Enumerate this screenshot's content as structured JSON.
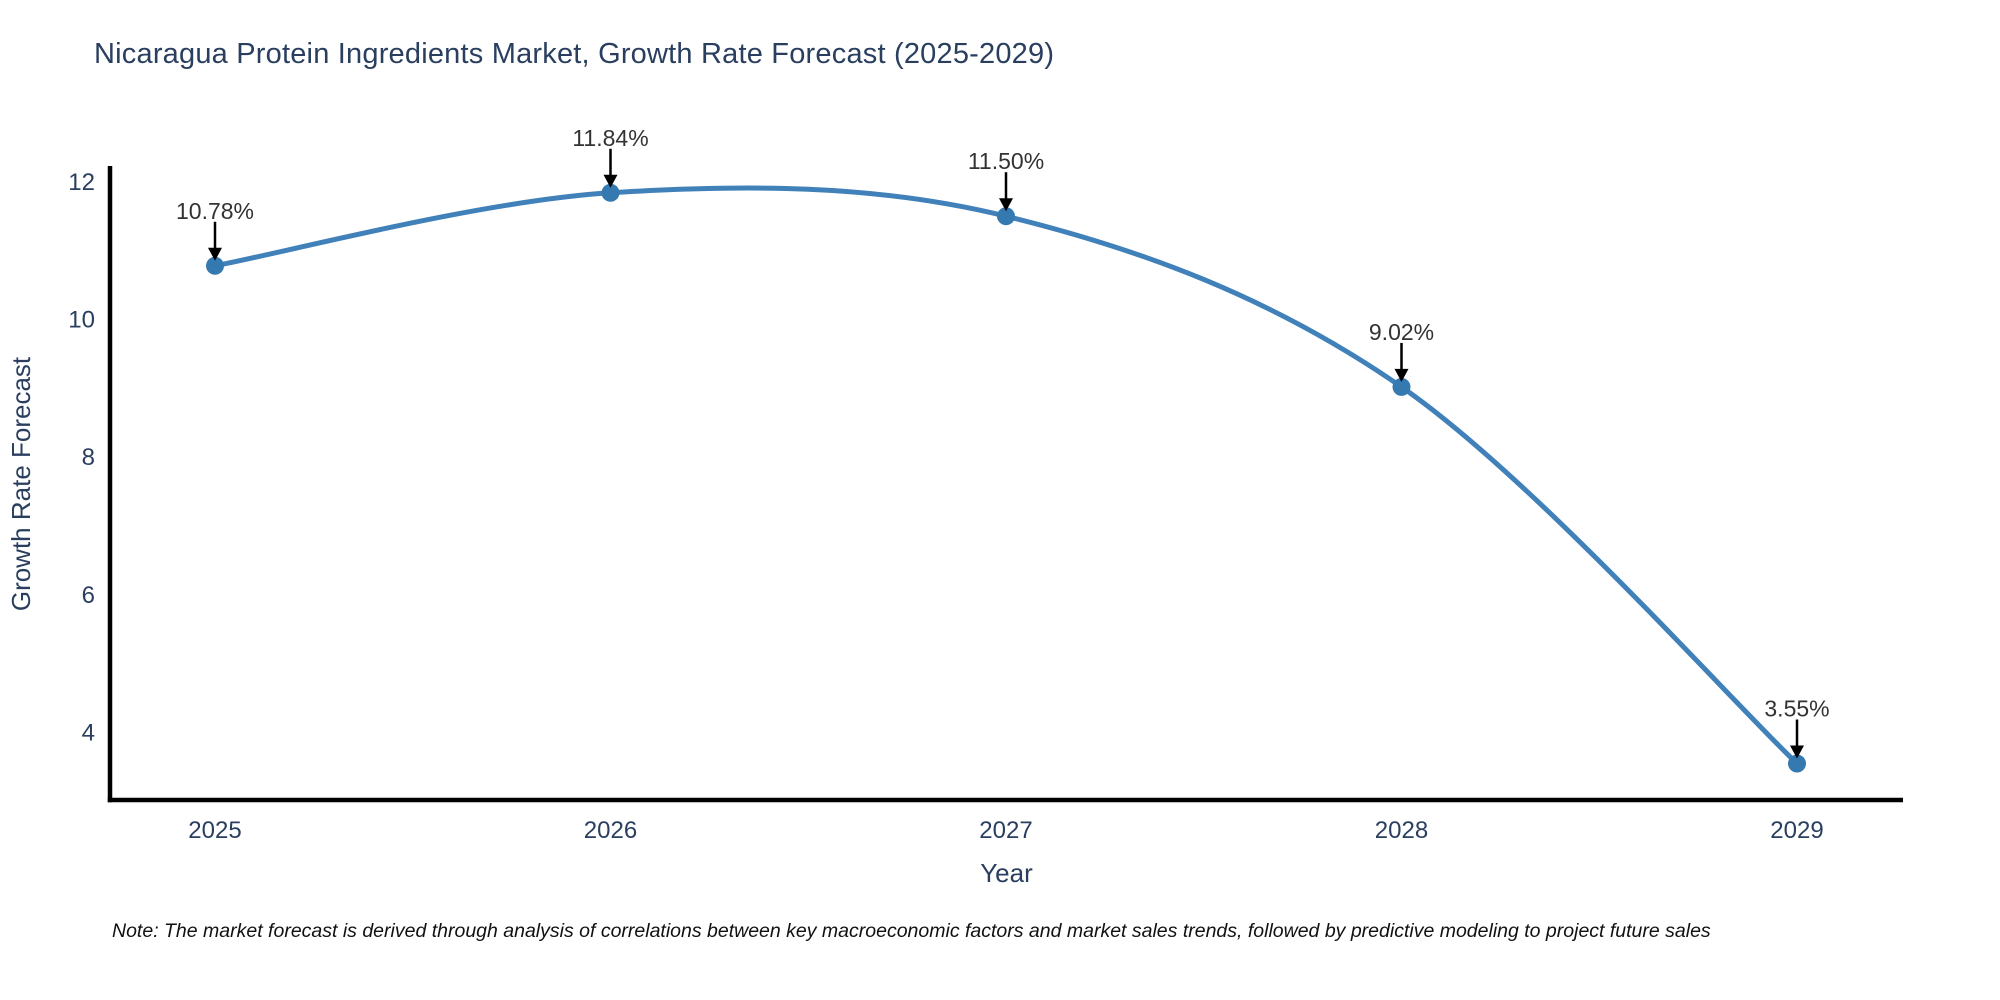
{
  "chart": {
    "title": "Nicaragua Protein Ingredients Market, Growth Rate Forecast (2025-2029)",
    "note": "Note: The market forecast is derived through analysis of correlations between key macroeconomic factors and market sales trends, followed by predictive modeling to project future sales"
  },
  "chart_data": {
    "type": "line",
    "title": "Nicaragua Protein Ingredients Market, Growth Rate Forecast (2025-2029)",
    "xlabel": "Year",
    "ylabel": "Growth Rate Forecast",
    "x": [
      2025,
      2026,
      2027,
      2028,
      2029
    ],
    "y": [
      10.78,
      11.84,
      11.5,
      9.02,
      3.55
    ],
    "point_labels": [
      "10.78%",
      "11.84%",
      "11.50%",
      "9.02%",
      "3.55%"
    ],
    "yticks": [
      4,
      6,
      8,
      10,
      12
    ],
    "ylim": [
      3.02,
      12.2
    ],
    "line_shape": "spline",
    "grid": false,
    "legend": "none",
    "colors": {
      "line": "#4181ba",
      "marker": "#3579b1",
      "axis": "#000000",
      "tick_text": "#2a3f5f",
      "axis_title_text": "#2a3f5f",
      "title_text": "#2a3f5f",
      "annotation_text": "#333333",
      "arrow": "#000000",
      "background": "#ffffff"
    }
  }
}
